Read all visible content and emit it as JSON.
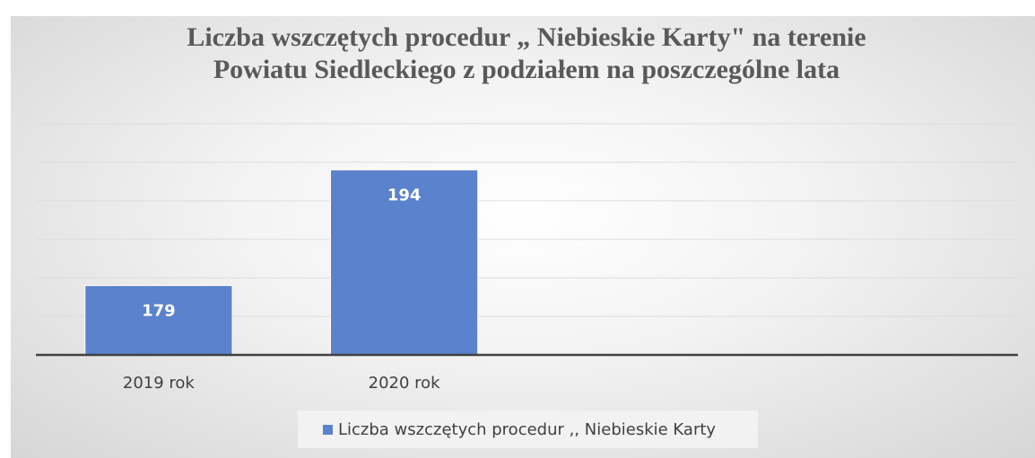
{
  "chart_data": {
    "type": "bar",
    "title": "Liczba wszczętych procedur „ Niebieskie Karty\" na terenie Powiatu Siedleckiego z podziałem na poszczególne lata",
    "categories": [
      "2019 rok",
      "2020 rok",
      null,
      null
    ],
    "series": [
      {
        "name": "Liczba wszczętych procedur ,, Niebieskie Karty",
        "color": "#5b82cc",
        "values": [
          179,
          194,
          null,
          null
        ]
      }
    ],
    "ylim": [
      170,
      200
    ],
    "yticks": [
      170,
      175,
      180,
      185,
      190,
      195,
      200
    ],
    "grid": true,
    "legend": "bottom"
  }
}
